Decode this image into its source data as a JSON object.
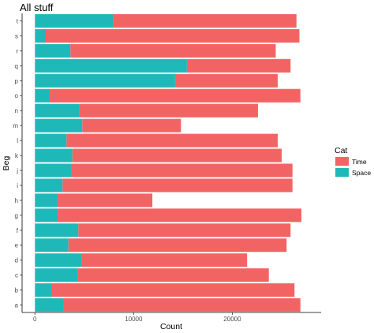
{
  "chart_data": {
    "type": "bar",
    "orientation": "horizontal",
    "stacked": true,
    "title": "All stuff",
    "xlabel": "Count",
    "ylabel": "Beg",
    "categories": [
      "a",
      "b",
      "c",
      "d",
      "e",
      "f",
      "g",
      "h",
      "i",
      "j",
      "k",
      "l",
      "m",
      "n",
      "o",
      "p",
      "q",
      "r",
      "s",
      "t"
    ],
    "series": [
      {
        "name": "Space",
        "color": "#1fb8b8",
        "values": [
          2900,
          1700,
          4300,
          4700,
          3400,
          4400,
          2300,
          2300,
          2800,
          3700,
          3800,
          3200,
          4800,
          4500,
          1500,
          14200,
          15400,
          3600,
          1100,
          7900
        ]
      },
      {
        "name": "Time",
        "color": "#f26464",
        "values": [
          24000,
          24600,
          19400,
          16800,
          22100,
          21500,
          24700,
          9600,
          23300,
          22400,
          21200,
          21400,
          10000,
          18100,
          25400,
          10400,
          10500,
          20800,
          25700,
          18600
        ]
      }
    ],
    "xlim": [
      -1300,
      29000
    ],
    "xticks": [
      0,
      10000,
      20000
    ],
    "xtick_labels": [
      "0",
      "10000",
      "20000"
    ],
    "legend": {
      "title": "Cat",
      "entries": [
        "Time",
        "Space"
      ],
      "position": "right"
    },
    "grid": false
  }
}
